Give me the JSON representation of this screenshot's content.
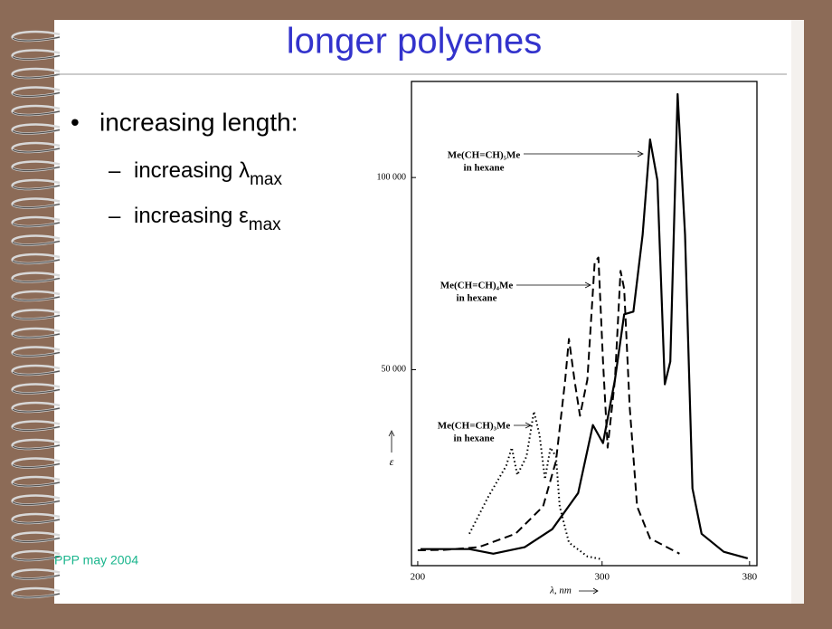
{
  "slide": {
    "title": "longer polyenes",
    "bullet": "increasing length:",
    "subbullets": [
      {
        "text": "increasing λ",
        "sub": "max"
      },
      {
        "text": "increasing ε",
        "sub": "max"
      }
    ],
    "footer": "PPP may 2004"
  },
  "chart_data": {
    "type": "line",
    "x_label": "λ, nm",
    "y_label": "ε",
    "xlim": [
      196.6,
      384
    ],
    "ylim": [
      -1000,
      125000
    ],
    "xticks": [
      200,
      300,
      380
    ],
    "yticks": [
      {
        "value": 50000,
        "label": "50 000"
      },
      {
        "value": 100000,
        "label": "100 000"
      }
    ],
    "series": [
      {
        "name": "Me(CH=CH)₅Me",
        "note": "in hexane",
        "color": "#000000",
        "style": "solid",
        "x": [
          201.5,
          228,
          241,
          258,
          273,
          287,
          295,
          300.5,
          307,
          312,
          317,
          322,
          326,
          330,
          334,
          337,
          341,
          345,
          349,
          354,
          366,
          379
        ],
        "values": [
          3300,
          3300,
          2100,
          3800,
          8500,
          17900,
          35600,
          30900,
          47400,
          64400,
          65100,
          85100,
          109900,
          99300,
          46200,
          52100,
          121700,
          85100,
          19100,
          7300,
          2600,
          900
        ]
      },
      {
        "name": "Me(CH=CH)₄Me",
        "note": "in hexane",
        "color": "#000000",
        "style": "dashed",
        "x": [
          200,
          214,
          233,
          253,
          268,
          275,
          280,
          282,
          285,
          288,
          292,
          296,
          298,
          300.5,
          303,
          307,
          310,
          312,
          315,
          319,
          326,
          342
        ],
        "values": [
          3000,
          3100,
          3800,
          7300,
          14400,
          26200,
          47400,
          58000,
          47400,
          38000,
          47400,
          78000,
          79200,
          52100,
          29700,
          47400,
          75700,
          71000,
          40300,
          14400,
          6100,
          2100
        ]
      },
      {
        "name": "Me(CH=CH)₃Me",
        "note": "in hexane",
        "color": "#000000",
        "style": "dotted",
        "x": [
          228,
          238,
          248,
          251,
          254,
          259,
          263,
          266,
          269,
          272,
          275,
          277,
          282,
          292,
          299.5
        ],
        "values": [
          7300,
          16700,
          25000,
          29700,
          22600,
          27400,
          39100,
          33200,
          21500,
          29700,
          27400,
          14400,
          5000,
          1400,
          700
        ]
      }
    ]
  }
}
